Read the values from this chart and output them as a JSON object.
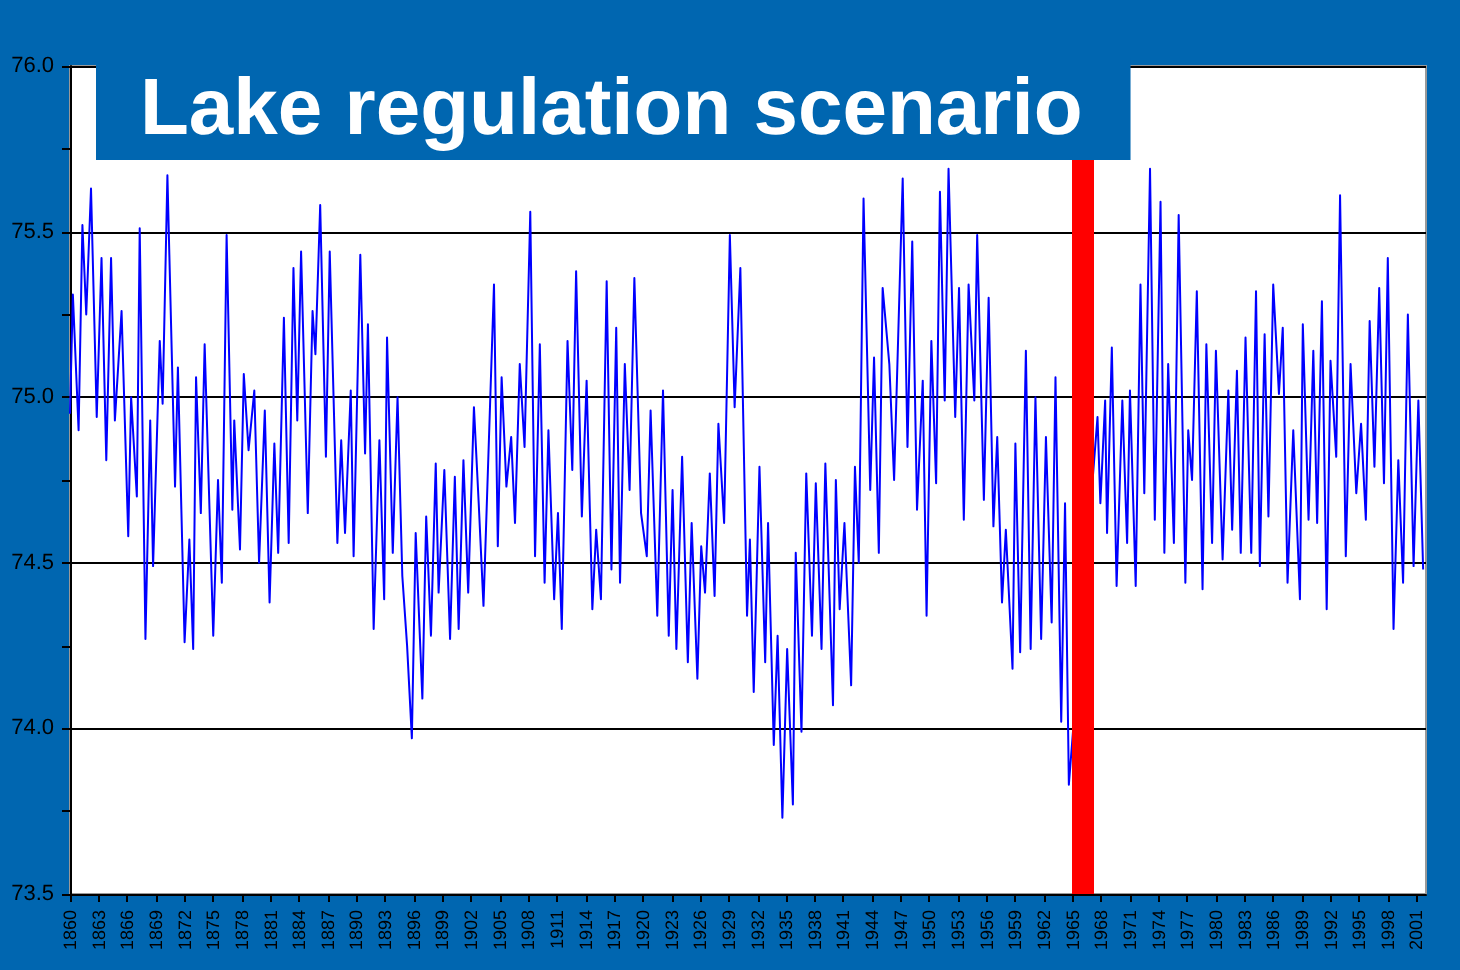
{
  "chart_data": {
    "type": "line",
    "title": "Lake regulation scenario",
    "x": [
      1860.0,
      1860.3,
      1860.9,
      1861.3,
      1861.7,
      1862.2,
      1862.8,
      1863.3,
      1863.8,
      1864.3,
      1864.7,
      1865.4,
      1866.1,
      1866.4,
      1867.0,
      1867.3,
      1867.9,
      1868.4,
      1868.7,
      1869.4,
      1869.7,
      1870.2,
      1871.0,
      1871.3,
      1872.0,
      1872.5,
      1872.9,
      1873.2,
      1873.7,
      1874.1,
      1875.0,
      1875.5,
      1875.9,
      1876.4,
      1877.0,
      1877.2,
      1877.8,
      1878.2,
      1878.7,
      1879.3,
      1879.8,
      1880.4,
      1880.9,
      1881.4,
      1881.8,
      1882.4,
      1882.9,
      1883.4,
      1883.8,
      1884.2,
      1884.9,
      1885.4,
      1885.7,
      1886.2,
      1886.8,
      1887.2,
      1888.0,
      1888.4,
      1888.8,
      1889.4,
      1889.7,
      1890.4,
      1890.9,
      1891.2,
      1891.8,
      1892.4,
      1892.9,
      1893.2,
      1893.8,
      1894.3,
      1894.8,
      1895.3,
      1895.8,
      1896.2,
      1896.9,
      1897.3,
      1897.8,
      1898.3,
      1898.6,
      1899.2,
      1899.8,
      1900.3,
      1900.7,
      1901.2,
      1901.7,
      1902.3,
      1902.8,
      1903.3,
      1904.4,
      1904.8,
      1905.2,
      1905.7,
      1906.2,
      1906.6,
      1907.1,
      1907.6,
      1908.2,
      1908.7,
      1909.2,
      1909.7,
      1910.1,
      1910.7,
      1911.1,
      1911.5,
      1912.1,
      1912.6,
      1913.0,
      1913.6,
      1914.1,
      1914.7,
      1915.1,
      1915.6,
      1916.2,
      1916.7,
      1917.2,
      1917.6,
      1918.1,
      1918.6,
      1919.1,
      1919.8,
      1920.4,
      1920.8,
      1921.5,
      1922.1,
      1922.7,
      1923.1,
      1923.5,
      1924.1,
      1924.7,
      1925.1,
      1925.7,
      1926.1,
      1926.5,
      1927.0,
      1927.5,
      1927.9,
      1928.5,
      1929.1,
      1929.6,
      1930.2,
      1930.9,
      1931.2,
      1931.6,
      1932.2,
      1932.8,
      1933.1,
      1933.7,
      1934.1,
      1934.6,
      1935.1,
      1935.7,
      1936.0,
      1936.6,
      1937.1,
      1937.7,
      1938.1,
      1938.7,
      1939.1,
      1939.9,
      1940.2,
      1940.6,
      1941.1,
      1941.8,
      1942.2,
      1942.6,
      1943.1,
      1943.8,
      1944.2,
      1944.7,
      1945.1,
      1945.8,
      1946.3,
      1947.2,
      1947.7,
      1948.2,
      1948.7,
      1949.3,
      1949.7,
      1950.2,
      1950.7,
      1951.1,
      1951.6,
      1952.0,
      1952.7,
      1953.1,
      1953.6,
      1954.1,
      1954.7,
      1955.0,
      1955.7,
      1956.2,
      1956.7,
      1957.1,
      1957.6,
      1958.0,
      1958.7,
      1959.0,
      1959.5,
      1960.1,
      1960.6,
      1961.1,
      1961.7,
      1962.2,
      1962.8,
      1963.2,
      1963.8,
      1964.2,
      1964.6,
      1967.6,
      1967.9,
      1968.4,
      1968.6,
      1969.1,
      1969.6,
      1970.2,
      1970.7,
      1971.0,
      1971.6,
      1972.1,
      1972.5,
      1973.1,
      1973.6,
      1974.2,
      1974.6,
      1975.0,
      1975.6,
      1976.1,
      1976.8,
      1977.1,
      1977.5,
      1978.0,
      1978.6,
      1979.0,
      1979.6,
      1980.0,
      1980.7,
      1981.3,
      1981.7,
      1982.2,
      1982.6,
      1983.1,
      1983.7,
      1984.2,
      1984.6,
      1985.1,
      1985.5,
      1986.0,
      1986.6,
      1987.0,
      1987.5,
      1988.1,
      1988.8,
      1989.1,
      1989.7,
      1990.2,
      1990.6,
      1991.1,
      1991.6,
      1992.0,
      1992.6,
      1993.0,
      1993.6,
      1994.1,
      1994.7,
      1995.2,
      1995.7,
      1996.1,
      1996.6,
      1997.1,
      1997.6,
      1998.0,
      1998.6,
      1999.1,
      1999.6,
      2000.1,
      2000.7,
      2001.2,
      2001.7
    ],
    "series": [
      {
        "color": "#0000ff",
        "values": [
          74.95,
          75.31,
          74.9,
          75.52,
          75.25,
          75.63,
          74.94,
          75.42,
          74.81,
          75.42,
          74.93,
          75.26,
          74.58,
          75.0,
          74.7,
          75.51,
          74.27,
          74.93,
          74.49,
          75.17,
          74.98,
          75.67,
          74.73,
          75.09,
          74.26,
          74.57,
          74.24,
          75.06,
          74.65,
          75.16,
          74.28,
          74.75,
          74.44,
          75.49,
          74.66,
          74.93,
          74.54,
          75.07,
          74.84,
          75.02,
          74.5,
          74.96,
          74.38,
          74.86,
          74.53,
          75.24,
          74.56,
          75.39,
          74.93,
          75.44,
          74.65,
          75.26,
          75.13,
          75.58,
          74.82,
          75.44,
          74.56,
          74.87,
          74.59,
          75.02,
          74.52,
          75.43,
          74.83,
          75.22,
          74.3,
          74.87,
          74.39,
          75.18,
          74.53,
          75.0,
          74.46,
          74.25,
          73.97,
          74.59,
          74.09,
          74.64,
          74.28,
          74.8,
          74.41,
          74.78,
          74.27,
          74.76,
          74.3,
          74.81,
          74.41,
          74.97,
          74.68,
          74.37,
          75.34,
          74.55,
          75.06,
          74.73,
          74.88,
          74.62,
          75.1,
          74.85,
          75.56,
          74.52,
          75.16,
          74.44,
          74.9,
          74.39,
          74.65,
          74.3,
          75.17,
          74.78,
          75.38,
          74.64,
          75.05,
          74.36,
          74.6,
          74.39,
          75.35,
          74.48,
          75.21,
          74.44,
          75.1,
          74.72,
          75.36,
          74.65,
          74.52,
          74.96,
          74.34,
          75.02,
          74.28,
          74.72,
          74.24,
          74.82,
          74.2,
          74.62,
          74.15,
          74.55,
          74.41,
          74.77,
          74.4,
          74.92,
          74.62,
          75.49,
          74.97,
          75.39,
          74.34,
          74.57,
          74.11,
          74.79,
          74.2,
          74.62,
          73.95,
          74.28,
          73.73,
          74.24,
          73.77,
          74.53,
          73.99,
          74.77,
          74.28,
          74.74,
          74.24,
          74.8,
          74.07,
          74.75,
          74.36,
          74.62,
          74.13,
          74.79,
          74.5,
          75.6,
          74.72,
          75.12,
          74.53,
          75.33,
          75.1,
          74.75,
          75.66,
          74.85,
          75.47,
          74.66,
          75.05,
          74.34,
          75.17,
          74.74,
          75.62,
          74.99,
          75.69,
          74.94,
          75.33,
          74.63,
          75.34,
          74.99,
          75.49,
          74.69,
          75.3,
          74.61,
          74.88,
          74.38,
          74.6,
          74.18,
          74.86,
          74.23,
          75.14,
          74.24,
          75.0,
          74.27,
          74.88,
          74.32,
          75.06,
          74.02,
          74.68,
          73.83,
          74.94,
          74.68,
          74.99,
          74.59,
          75.15,
          74.43,
          74.99,
          74.56,
          75.02,
          74.43,
          75.34,
          74.71,
          75.69,
          74.63,
          75.59,
          74.53,
          75.1,
          74.56,
          75.55,
          74.44,
          74.9,
          74.75,
          75.32,
          74.42,
          75.16,
          74.56,
          75.14,
          74.51,
          75.02,
          74.6,
          75.08,
          74.53,
          75.18,
          74.53,
          75.32,
          74.49,
          75.19,
          74.64,
          75.34,
          75.01,
          75.21,
          74.44,
          74.9,
          74.39,
          75.22,
          74.63,
          75.14,
          74.62,
          75.29,
          74.36,
          75.11,
          74.82,
          75.61,
          74.52,
          75.1,
          74.71,
          74.92,
          74.63,
          75.23,
          74.79,
          75.33,
          74.74,
          75.42,
          74.3,
          74.81,
          74.44,
          75.25,
          74.49,
          74.99,
          74.48
        ]
      }
    ],
    "xlim": [
      1860,
      2002
    ],
    "xticks": [
      1860,
      1863,
      1866,
      1869,
      1872,
      1875,
      1878,
      1881,
      1884,
      1887,
      1890,
      1893,
      1896,
      1899,
      1902,
      1905,
      1908,
      1911,
      1914,
      1917,
      1920,
      1923,
      1926,
      1929,
      1932,
      1935,
      1938,
      1941,
      1944,
      1947,
      1950,
      1953,
      1956,
      1959,
      1962,
      1965,
      1968,
      1971,
      1974,
      1977,
      1980,
      1983,
      1986,
      1989,
      1992,
      1995,
      1998,
      2001
    ],
    "ylim": [
      73.5,
      76.0
    ],
    "yticks": [
      73.5,
      {
        "value": 73.75,
        "label": null
      },
      {
        "value": 74,
        "label": "74.0"
      },
      {
        "value": 74.25,
        "label": null
      },
      74.5,
      {
        "value": 74.75,
        "label": null
      },
      {
        "value": 75,
        "label": "75.0"
      },
      {
        "value": 75.25,
        "label": null
      },
      75.5,
      {
        "value": 75.75,
        "label": null
      },
      {
        "value": 76,
        "label": "76.0"
      }
    ],
    "grid": "y",
    "marker": "none",
    "ref_lines": [
      {
        "axis": "x",
        "value": 1966,
        "color": "#ff0000"
      }
    ]
  }
}
